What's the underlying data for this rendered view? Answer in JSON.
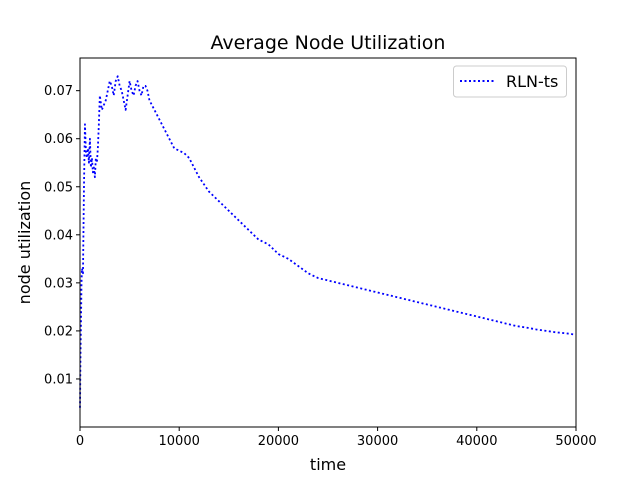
{
  "chart_data": {
    "type": "line",
    "title": "Average Node Utilization",
    "xlabel": "time",
    "ylabel": "node utilization",
    "xlim": [
      0,
      50000
    ],
    "ylim": [
      0.0,
      0.0768
    ],
    "xticks": [
      0,
      10000,
      20000,
      30000,
      40000,
      50000
    ],
    "xtick_labels": [
      "0",
      "10000",
      "20000",
      "30000",
      "40000",
      "50000"
    ],
    "yticks": [
      0.01,
      0.02,
      0.03,
      0.04,
      0.05,
      0.06,
      0.07
    ],
    "ytick_labels": [
      "0.01",
      "0.02",
      "0.03",
      "0.04",
      "0.05",
      "0.06",
      "0.07"
    ],
    "grid": false,
    "legend": {
      "position": "top-right",
      "entries": [
        "RLN-ts"
      ]
    },
    "series": [
      {
        "name": "RLN-ts",
        "color": "#0000ff",
        "line_style": "dotted",
        "x": [
          0,
          50,
          100,
          150,
          200,
          300,
          400,
          500,
          600,
          700,
          800,
          900,
          1000,
          1100,
          1200,
          1300,
          1400,
          1500,
          1600,
          1700,
          1800,
          1900,
          2000,
          2200,
          2400,
          2600,
          2800,
          3000,
          3200,
          3400,
          3600,
          3800,
          4000,
          4200,
          4400,
          4600,
          4800,
          5000,
          5200,
          5400,
          5600,
          5800,
          6000,
          6200,
          6400,
          6600,
          6800,
          7000,
          7500,
          8000,
          8500,
          9000,
          9500,
          10000,
          10500,
          11000,
          11500,
          12000,
          13000,
          14000,
          15000,
          16000,
          17000,
          18000,
          19000,
          20000,
          21000,
          22000,
          23000,
          24000,
          25000,
          26000,
          27000,
          28000,
          29000,
          30000,
          31000,
          32000,
          33000,
          34000,
          35000,
          36000,
          37000,
          38000,
          39000,
          40000,
          41000,
          42000,
          43000,
          44000,
          45000,
          46000,
          47000,
          48000,
          49000,
          50000
        ],
        "y": [
          0.004,
          0.015,
          0.022,
          0.03,
          0.033,
          0.032,
          0.05,
          0.063,
          0.057,
          0.056,
          0.058,
          0.055,
          0.06,
          0.054,
          0.056,
          0.053,
          0.054,
          0.052,
          0.056,
          0.055,
          0.058,
          0.063,
          0.069,
          0.066,
          0.067,
          0.068,
          0.07,
          0.072,
          0.071,
          0.069,
          0.072,
          0.073,
          0.071,
          0.07,
          0.068,
          0.066,
          0.069,
          0.072,
          0.07,
          0.069,
          0.071,
          0.072,
          0.07,
          0.069,
          0.071,
          0.071,
          0.07,
          0.068,
          0.066,
          0.064,
          0.062,
          0.06,
          0.058,
          0.0575,
          0.057,
          0.056,
          0.054,
          0.052,
          0.049,
          0.047,
          0.045,
          0.043,
          0.041,
          0.039,
          0.038,
          0.036,
          0.035,
          0.0335,
          0.032,
          0.031,
          0.0305,
          0.03,
          0.0295,
          0.029,
          0.0285,
          0.028,
          0.0275,
          0.027,
          0.0265,
          0.026,
          0.0255,
          0.025,
          0.0245,
          0.024,
          0.0235,
          0.023,
          0.0225,
          0.022,
          0.0215,
          0.021,
          0.0207,
          0.0203,
          0.02,
          0.0197,
          0.0195,
          0.0192
        ]
      }
    ]
  }
}
